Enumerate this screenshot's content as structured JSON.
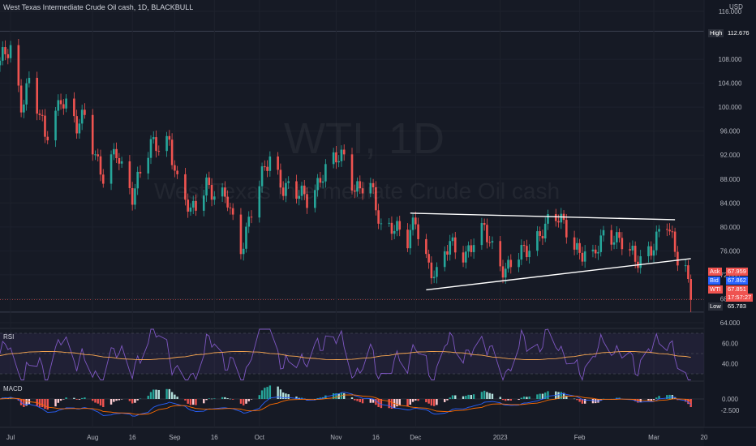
{
  "header": {
    "title": "West Texas Intermediate Crude Oil cash, 1D, BLACKBULL",
    "currency": "USD"
  },
  "watermark": {
    "symbol": "WTI, 1D",
    "name": "West Texas Intermediate Crude Oil cash"
  },
  "price_axis": {
    "labels": [
      "116.000",
      "112.676",
      "108.000",
      "104.000",
      "100.000",
      "96.000",
      "92.000",
      "88.000",
      "84.000",
      "80.000",
      "76.000",
      "72.000",
      "68.000",
      "64.000"
    ]
  },
  "tags": {
    "high": {
      "label": "High",
      "value": "112.676"
    },
    "ask": {
      "label": "Ask",
      "value": "67.959"
    },
    "bid": {
      "label": "Bid",
      "value": "67.862"
    },
    "last": {
      "label": "WTI",
      "value": "67.851",
      "countdown": "17:57:27"
    },
    "low": {
      "label": "Low",
      "value": "65.783"
    }
  },
  "rsi": {
    "label": "RSI",
    "levels": [
      "60.00",
      "40.00"
    ]
  },
  "macd": {
    "label": "MACD",
    "levels": [
      "0.000",
      "-2.500"
    ]
  },
  "time_axis": {
    "labels": [
      "Jul",
      "Aug",
      "16",
      "Sep",
      "16",
      "Oct",
      "Nov",
      "16",
      "Dec",
      "2023",
      "Feb",
      "Mar",
      "20"
    ]
  },
  "colors": {
    "up": "#26a69a",
    "down": "#ef5350",
    "rsi_line": "#7e57c2",
    "rsi_ma": "#f7a650",
    "macd_line": "#2962ff",
    "signal_line": "#ff6d00",
    "trendline": "#ffffff"
  },
  "annotations": {
    "pattern": "symmetrical triangle (two converging trendlines)"
  },
  "chart_data": {
    "type": "candlestick",
    "symbol": "WTI",
    "timeframe": "1D",
    "y_range": [
      64,
      116
    ],
    "x_range": [
      "2022-06-27",
      "2023-03-20"
    ],
    "high": 112.676,
    "low": 65.783,
    "last": 67.851,
    "ask": 67.959,
    "bid": 67.862,
    "trend_path": [
      [
        "2022-06-27",
        107
      ],
      [
        "2022-07-01",
        110
      ],
      [
        "2022-07-05",
        101
      ],
      [
        "2022-07-08",
        104
      ],
      [
        "2022-07-14",
        95
      ],
      [
        "2022-07-20",
        102
      ],
      [
        "2022-07-26",
        96
      ],
      [
        "2022-07-29",
        99
      ],
      [
        "2022-08-05",
        88
      ],
      [
        "2022-08-10",
        92
      ],
      [
        "2022-08-16",
        86
      ],
      [
        "2022-08-23",
        93
      ],
      [
        "2022-08-30",
        95
      ],
      [
        "2022-09-02",
        87
      ],
      [
        "2022-09-07",
        82
      ],
      [
        "2022-09-13",
        88
      ],
      [
        "2022-09-16",
        85
      ],
      [
        "2022-09-21",
        84
      ],
      [
        "2022-09-26",
        77
      ],
      [
        "2022-09-29",
        81
      ],
      [
        "2022-10-07",
        92
      ],
      [
        "2022-10-12",
        87
      ],
      [
        "2022-10-17",
        85
      ],
      [
        "2022-10-21",
        85
      ],
      [
        "2022-10-27",
        89
      ],
      [
        "2022-11-04",
        92
      ],
      [
        "2022-11-08",
        87
      ],
      [
        "2022-11-14",
        86
      ],
      [
        "2022-11-18",
        80
      ],
      [
        "2022-11-22",
        81
      ],
      [
        "2022-11-28",
        77
      ],
      [
        "2022-12-01",
        81
      ],
      [
        "2022-12-06",
        74
      ],
      [
        "2022-12-09",
        71.5
      ],
      [
        "2022-12-14",
        77
      ],
      [
        "2022-12-20",
        76
      ],
      [
        "2022-12-27",
        79
      ],
      [
        "2023-01-04",
        73
      ],
      [
        "2023-01-10",
        75
      ],
      [
        "2023-01-18",
        80
      ],
      [
        "2023-01-24",
        81
      ],
      [
        "2023-01-27",
        80
      ],
      [
        "2023-02-01",
        76
      ],
      [
        "2023-02-06",
        74
      ],
      [
        "2023-02-10",
        79
      ],
      [
        "2023-02-14",
        79
      ],
      [
        "2023-02-22",
        74
      ],
      [
        "2023-02-28",
        77
      ],
      [
        "2023-03-06",
        80
      ],
      [
        "2023-03-09",
        76
      ],
      [
        "2023-03-13",
        74
      ],
      [
        "2023-03-15",
        67.8
      ]
    ],
    "trendlines": [
      {
        "from": [
          "2022-11-29",
          82.3
        ],
        "to": [
          "2023-03-09",
          81.2
        ]
      },
      {
        "from": [
          "2022-12-05",
          69.5
        ],
        "to": [
          "2023-03-15",
          74.7
        ]
      }
    ],
    "rsi_levels": [
      60,
      40
    ],
    "macd_levels": [
      0,
      -2.5
    ]
  }
}
